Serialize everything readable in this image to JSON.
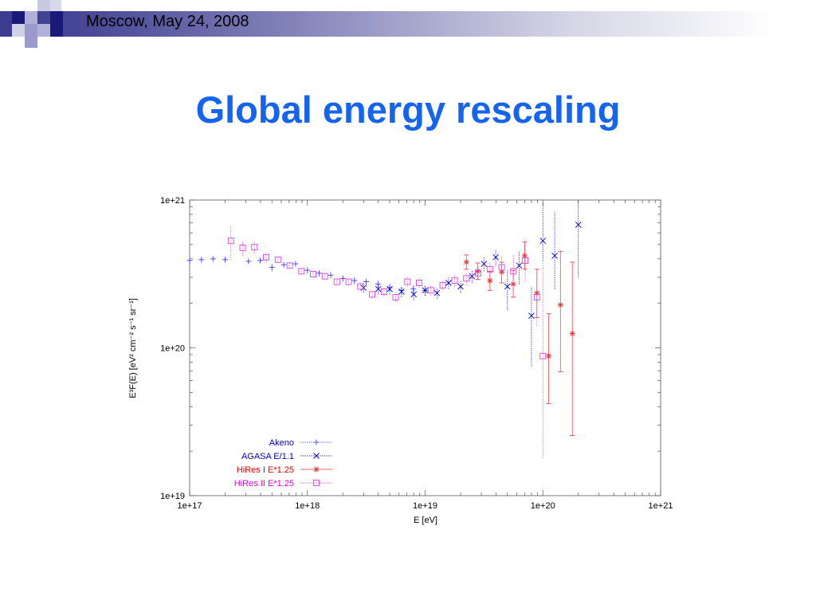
{
  "header": {
    "date_text": "Moscow, May 24, 2008"
  },
  "slide": {
    "title": "Global energy rescaling"
  },
  "colors": {
    "title": "#1464f0",
    "akeno": "#4040ff",
    "agasa": "#0000cc",
    "hires1": "#e83030",
    "hires2": "#e040e0"
  },
  "chart_data": {
    "type": "scatter",
    "xscale": "log",
    "yscale": "log",
    "xlim": [
      1e+17,
      1e+21
    ],
    "ylim": [
      1e+19,
      1e+21
    ],
    "xlabel": "E [eV]",
    "ylabel": "E³F(E) [eV² cm⁻² s⁻¹ sr⁻¹]",
    "xticks": [
      "1e+17",
      "1e+18",
      "1e+19",
      "1e+20",
      "1e+21"
    ],
    "yticks": [
      "1e+19",
      "1e+20",
      "1e+21"
    ],
    "grid": false,
    "legend_position": "bottom-left",
    "series": [
      {
        "name": "Akeno",
        "marker": "plus",
        "color": "#4040ff",
        "points": [
          [
            1e+17,
            3.9e+20,
            3.8e+20,
            4e+20
          ],
          [
            1.26e+17,
            3.95e+20,
            3.85e+20,
            4.05e+20
          ],
          [
            1.58e+17,
            4e+20,
            3.9e+20,
            4.1e+20
          ],
          [
            2e+17,
            3.95e+20,
            3.85e+20,
            4.05e+20
          ],
          [
            3.16e+17,
            3.85e+20,
            3.75e+20,
            3.95e+20
          ],
          [
            3.98e+17,
            3.9e+20,
            3.8e+20,
            4e+20
          ],
          [
            5e+17,
            3.5e+20,
            3.3e+20,
            3.7e+20
          ],
          [
            6.3e+17,
            3.65e+20,
            3.5e+20,
            3.8e+20
          ],
          [
            7.94e+17,
            3.7e+20,
            3.55e+20,
            3.85e+20
          ],
          [
            1e+18,
            3.35e+20,
            3.2e+20,
            3.5e+20
          ],
          [
            1.26e+18,
            3.2e+20,
            3.05e+20,
            3.35e+20
          ],
          [
            1.58e+18,
            3.1e+20,
            2.95e+20,
            3.25e+20
          ],
          [
            2e+18,
            2.95e+20,
            2.8e+20,
            3.1e+20
          ],
          [
            2.51e+18,
            2.85e+20,
            2.7e+20,
            3e+20
          ],
          [
            3.16e+18,
            2.8e+20,
            2.65e+20,
            2.95e+20
          ],
          [
            3.98e+18,
            2.7e+20,
            2.55e+20,
            2.85e+20
          ],
          [
            5e+18,
            2.55e+20,
            2.4e+20,
            2.7e+20
          ],
          [
            6.3e+18,
            2.45e+20,
            2.3e+20,
            2.6e+20
          ],
          [
            7.94e+18,
            2.5e+20,
            2.35e+20,
            2.65e+20
          ],
          [
            1e+19,
            2.45e+20,
            2.25e+20,
            2.65e+20
          ]
        ]
      },
      {
        "name": "AGASA E/1.1",
        "marker": "cross",
        "color": "#0000cc",
        "points": [
          [
            3e+18,
            2.55e+20,
            2.35e+20,
            2.75e+20
          ],
          [
            4e+18,
            2.5e+20,
            2.3e+20,
            2.7e+20
          ],
          [
            5e+18,
            2.5e+20,
            2.3e+20,
            2.7e+20
          ],
          [
            6.3e+18,
            2.4e+20,
            2.2e+20,
            2.6e+20
          ],
          [
            8e+18,
            2.3e+20,
            2.1e+20,
            2.5e+20
          ],
          [
            1e+19,
            2.45e+20,
            2.25e+20,
            2.65e+20
          ],
          [
            1.26e+19,
            2.35e+20,
            2.15e+20,
            2.55e+20
          ],
          [
            1.58e+19,
            2.75e+20,
            2.5e+20,
            3e+20
          ],
          [
            2e+19,
            2.6e+20,
            2.35e+20,
            2.85e+20
          ],
          [
            2.5e+19,
            3.05e+20,
            2.75e+20,
            3.35e+20
          ],
          [
            3.16e+19,
            3.7e+20,
            3.3e+20,
            4.1e+20
          ],
          [
            3.98e+19,
            4.1e+20,
            3.6e+20,
            4.6e+20
          ],
          [
            5e+19,
            2.6e+20,
            1.8e+20,
            3.4e+20
          ],
          [
            6.3e+19,
            3.6e+20,
            2.7e+20,
            4.5e+20
          ],
          [
            8e+19,
            1.65e+20,
            7.5e+19,
            2.6e+20
          ],
          [
            1e+20,
            5.3e+20,
            3.9e+20,
            9.5e+20
          ],
          [
            1.26e+20,
            4.2e+20,
            2.5e+20,
            8.3e+20
          ],
          [
            2e+20,
            6.8e+20,
            3e+20,
            1e+21
          ]
        ]
      },
      {
        "name": "HiRes I E*1.25",
        "marker": "star",
        "color": "#e83030",
        "points": [
          [
            2.24e+19,
            3.8e+20,
            3.4e+20,
            4.25e+20
          ],
          [
            2.8e+19,
            3.3e+20,
            2.9e+20,
            3.75e+20
          ],
          [
            3.55e+19,
            2.85e+20,
            2.45e+20,
            3.3e+20
          ],
          [
            4.47e+19,
            3.25e+20,
            2.75e+20,
            3.8e+20
          ],
          [
            5.6e+19,
            2.7e+20,
            2.2e+20,
            3.35e+20
          ],
          [
            7e+19,
            4.2e+20,
            3.4e+20,
            5.2e+20
          ],
          [
            8.9e+19,
            2.35e+20,
            1.6e+20,
            3.4e+20
          ],
          [
            1.12e+20,
            8.8e+19,
            4.2e+19,
            1.7e+20
          ],
          [
            1.41e+20,
            1.95e+20,
            6.9e+19,
            4.5e+20
          ],
          [
            1.78e+20,
            1.25e+20,
            2.55e+19,
            3.8e+20
          ]
        ]
      },
      {
        "name": "HiRes II E*1.25",
        "marker": "square",
        "color": "#e040e0",
        "points": [
          [
            2.24e+17,
            5.3e+20,
            3.9e+20,
            6.7e+20
          ],
          [
            2.82e+17,
            4.75e+20,
            4.2e+20,
            5.3e+20
          ],
          [
            3.55e+17,
            4.8e+20,
            4.35e+20,
            5.25e+20
          ],
          [
            4.47e+17,
            4.1e+20,
            3.8e+20,
            4.4e+20
          ],
          [
            5.62e+17,
            3.95e+20,
            3.75e+20,
            4.15e+20
          ],
          [
            7.08e+17,
            3.6e+20,
            3.45e+20,
            3.75e+20
          ],
          [
            8.9e+17,
            3.3e+20,
            3.15e+20,
            3.45e+20
          ],
          [
            1.12e+18,
            3.15e+20,
            3e+20,
            3.3e+20
          ],
          [
            1.41e+18,
            3.05e+20,
            2.9e+20,
            3.2e+20
          ],
          [
            1.78e+18,
            2.8e+20,
            2.65e+20,
            2.95e+20
          ],
          [
            2.24e+18,
            2.8e+20,
            2.65e+20,
            2.95e+20
          ],
          [
            2.82e+18,
            2.6e+20,
            2.45e+20,
            2.75e+20
          ],
          [
            3.55e+18,
            2.3e+20,
            2.15e+20,
            2.45e+20
          ],
          [
            4.47e+18,
            2.4e+20,
            2.25e+20,
            2.55e+20
          ],
          [
            5.62e+18,
            2.2e+20,
            2.05e+20,
            2.35e+20
          ],
          [
            7.08e+18,
            2.8e+20,
            2.6e+20,
            3e+20
          ],
          [
            8.9e+18,
            2.75e+20,
            2.55e+20,
            2.95e+20
          ],
          [
            1.12e+19,
            2.45e+20,
            2.25e+20,
            2.65e+20
          ],
          [
            1.41e+19,
            2.65e+20,
            2.45e+20,
            2.85e+20
          ],
          [
            1.78e+19,
            2.85e+20,
            2.6e+20,
            3.1e+20
          ],
          [
            2.24e+19,
            2.95e+20,
            2.65e+20,
            3.25e+20
          ],
          [
            2.82e+19,
            3.2e+20,
            2.85e+20,
            3.55e+20
          ],
          [
            3.55e+19,
            3.4e+20,
            2.95e+20,
            3.85e+20
          ],
          [
            4.47e+19,
            3.5e+20,
            2.9e+20,
            4.15e+20
          ],
          [
            5.62e+19,
            3.3e+20,
            2.5e+20,
            4.3e+20
          ],
          [
            7.08e+19,
            3.9e+20,
            2.8e+20,
            5.4e+20
          ],
          [
            8.9e+19,
            2.2e+20,
            1.4e+20,
            3.5e+20
          ],
          [
            1e+20,
            8.8e+19,
            1.8e+19,
            3.9e+20
          ]
        ]
      }
    ]
  }
}
